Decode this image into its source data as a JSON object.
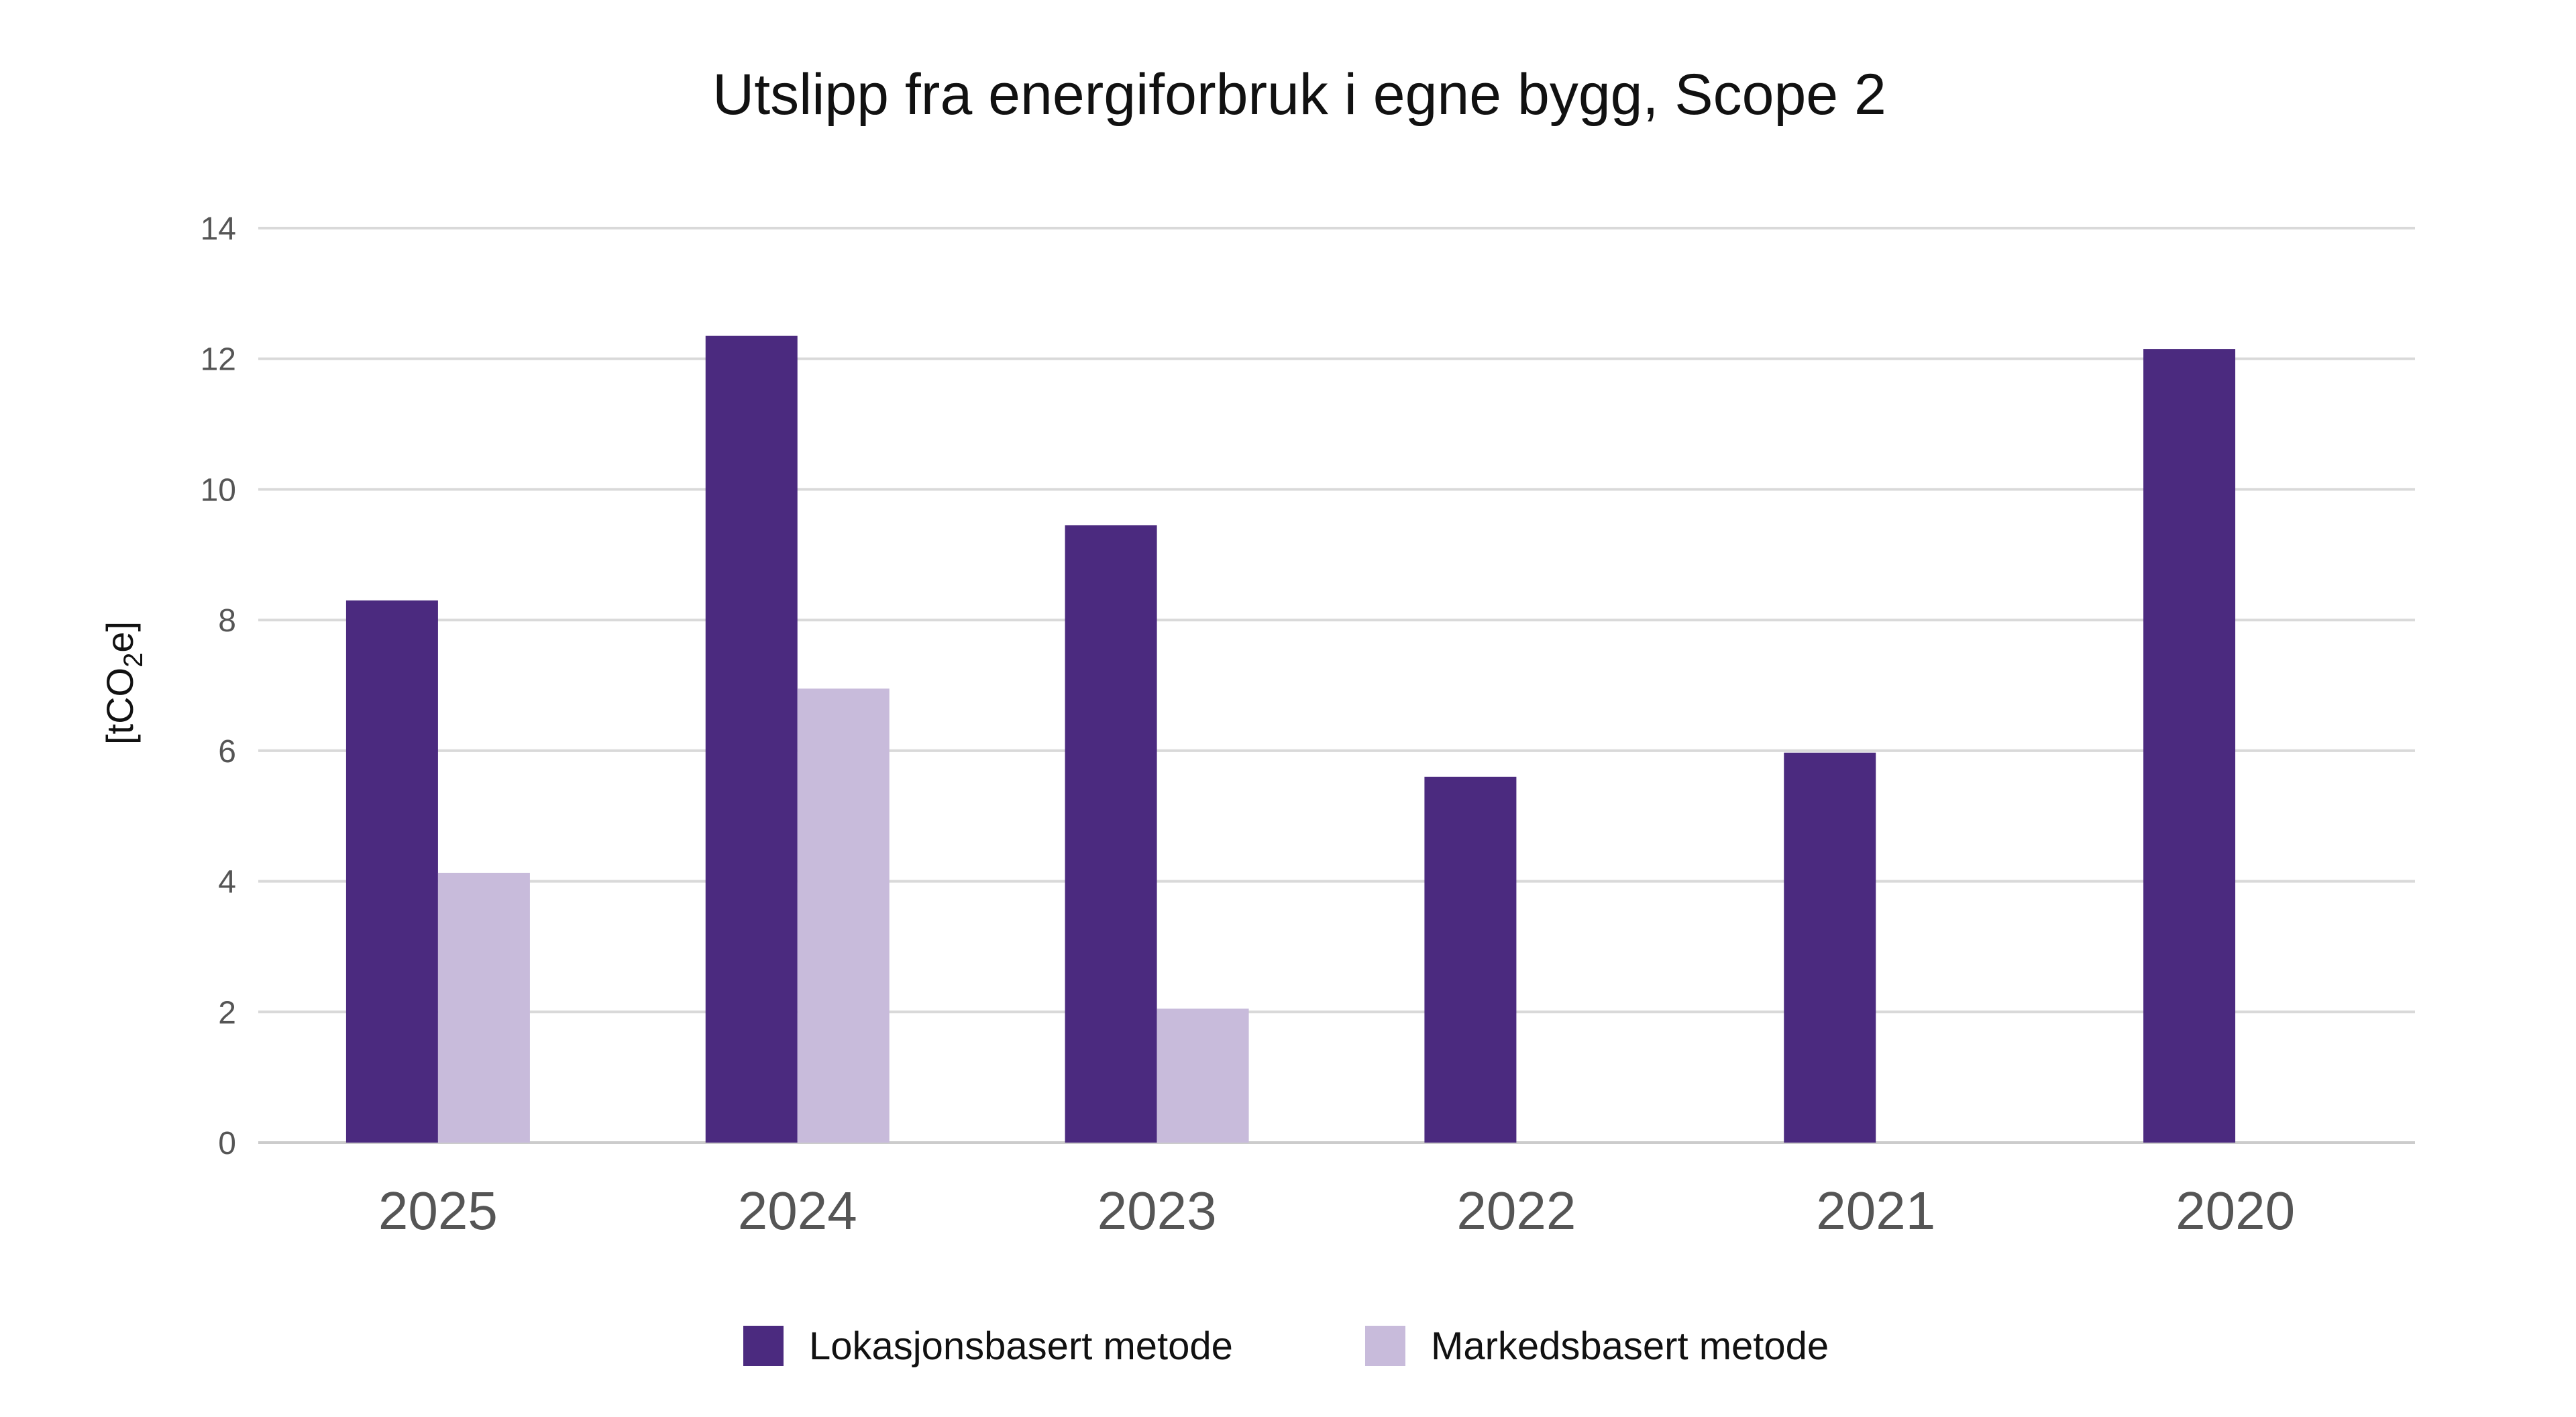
{
  "chart_data": {
    "type": "bar",
    "title": "Utslipp fra energiforbruk i egne bygg, Scope 2",
    "ylabel": {
      "prefix": "[tCO",
      "sub": "2",
      "suffix": "e]"
    },
    "xlabel": "",
    "categories": [
      "2025",
      "2024",
      "2023",
      "2022",
      "2021",
      "2020"
    ],
    "ylim": [
      0,
      14
    ],
    "yticks": [
      "0",
      "2",
      "4",
      "6",
      "8",
      "10",
      "12",
      "14"
    ],
    "grid": true,
    "legend_position": "bottom",
    "series": [
      {
        "name": "Lokasjonsbasert metode",
        "color": "#4b2a7f",
        "values": [
          8.3,
          12.35,
          9.45,
          5.6,
          5.97,
          12.15
        ]
      },
      {
        "name": "Markedsbasert metode",
        "color": "#c8bbdb",
        "values": [
          4.13,
          6.95,
          2.05,
          0,
          0,
          0
        ]
      }
    ]
  }
}
